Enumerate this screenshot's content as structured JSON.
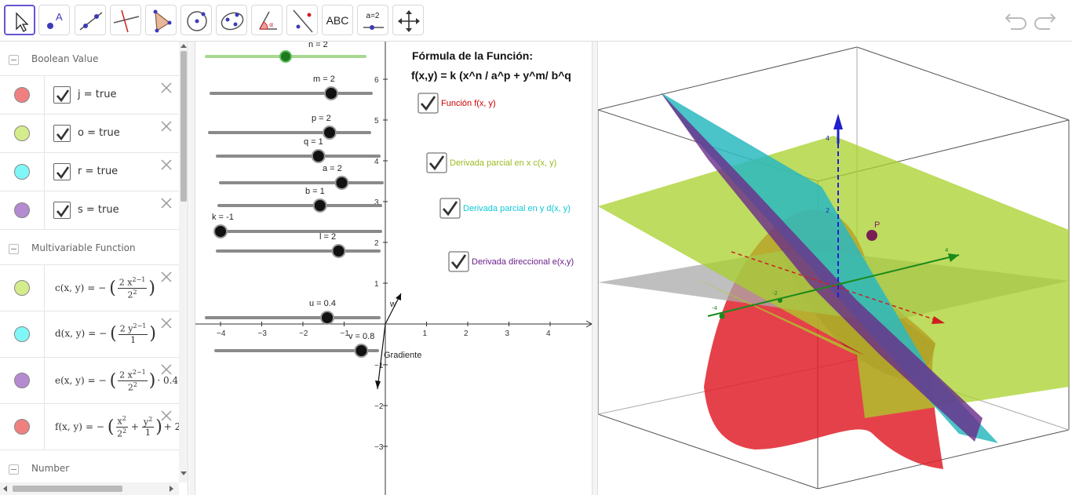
{
  "toolbar": {
    "text_tool_label": "ABC",
    "slider_tool_label": "a=2"
  },
  "algebra": {
    "groups": [
      {
        "label": "Boolean Value"
      },
      {
        "label": "Multivariable Function"
      },
      {
        "label": "Number"
      }
    ],
    "booleans": [
      {
        "text": "j = true",
        "color": "#f08080"
      },
      {
        "text": "o = true",
        "color": "#d4ec8c"
      },
      {
        "text": "r = true",
        "color": "#7ff7f7"
      },
      {
        "text": "s = true",
        "color": "#b48ad0"
      }
    ],
    "functions": [
      {
        "lhs": "c(x, y)",
        "color": "#d4ec8c",
        "num": "2 x",
        "exp": "2−1",
        "den": "2",
        "den_exp": "2",
        "tail": ""
      },
      {
        "lhs": "d(x, y)",
        "color": "#7ff7f7",
        "num": "2 y",
        "exp": "2−1",
        "den": "1",
        "den_exp": "",
        "tail": ""
      },
      {
        "lhs": "e(x, y)",
        "color": "#b48ad0",
        "num": "2 x",
        "exp": "2−1",
        "den": "2",
        "den_exp": "2",
        "tail": "· 0.4 −"
      },
      {
        "lhs": "f(x, y)",
        "color": "#f08080",
        "num": "x",
        "exp": "2",
        "den": "2",
        "den_exp": "2",
        "tail": "+ 2"
      }
    ],
    "f_second_num": "y",
    "f_second_exp": "2",
    "f_second_den": "1"
  },
  "graphics2d": {
    "sliders": [
      {
        "label": "n = 2",
        "value": 2,
        "min": 0,
        "max": 4
      },
      {
        "label": "m = 2",
        "value": 2,
        "min": -4,
        "max": 4
      },
      {
        "label": "p = 2",
        "value": 2,
        "min": -4,
        "max": 4
      },
      {
        "label": "q = 1",
        "value": 1,
        "min": -4,
        "max": 4
      },
      {
        "label": "a = 2",
        "value": 2,
        "min": -4,
        "max": 4
      },
      {
        "label": "b = 1",
        "value": 1,
        "min": -4,
        "max": 4
      },
      {
        "label": "k = -1",
        "value": -1,
        "min": -1,
        "max": 10
      },
      {
        "label": "l = 2",
        "value": 2,
        "min": -4,
        "max": 4
      },
      {
        "label": "u = 0.4",
        "value": 0.4,
        "min": -1,
        "max": 1
      },
      {
        "label": "v = 0.8",
        "value": 0.8,
        "min": -1,
        "max": 1
      }
    ],
    "formula_title": "Fórmula de la Función:",
    "formula": "f(x,y) = k (x^n / a^p + y^m/ b^q",
    "checkboxes": [
      {
        "label": "Función f(x, y)",
        "color": "#cc0000"
      },
      {
        "label": "Derivada parcial en x c(x, y)",
        "color": "#99bb22"
      },
      {
        "label": "Derivada parcial en y d(x, y)",
        "color": "#11c8d8"
      },
      {
        "label": "Derivada direccional e(x,y)",
        "color": "#6a1f8a"
      }
    ],
    "x_ticks": [
      "−4",
      "−3",
      "−2",
      "−1",
      "1",
      "2",
      "3",
      "4"
    ],
    "y_ticks": [
      "6",
      "5",
      "4",
      "3",
      "2",
      "1",
      "−1",
      "−2",
      "−3"
    ],
    "vector_w_label": "w",
    "gradient_label": "Gradiente"
  },
  "graphics3d": {
    "z_tick_4": "4",
    "z_tick_2": "2",
    "point_label": "P",
    "tick_neg4": "-4",
    "tick_neg2": "-2",
    "tick_4": "4"
  }
}
